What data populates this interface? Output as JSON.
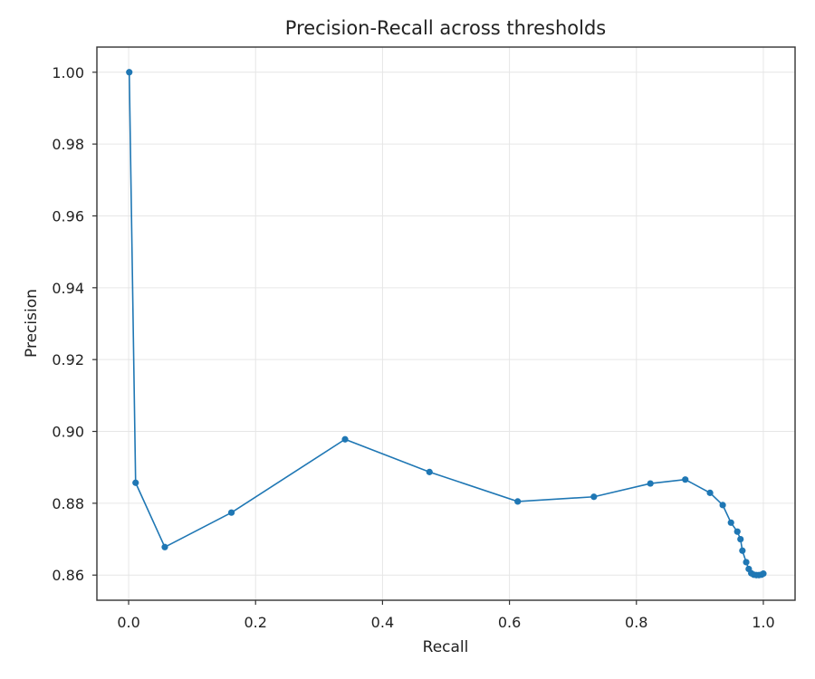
{
  "chart_data": {
    "type": "line",
    "title": "Precision-Recall across thresholds",
    "xlabel": "Recall",
    "ylabel": "Precision",
    "xlim": [
      -0.05,
      1.05
    ],
    "ylim": [
      0.853,
      1.007
    ],
    "xticks": [
      0.0,
      0.2,
      0.4,
      0.6,
      0.8,
      1.0
    ],
    "xtick_labels": [
      "0.0",
      "0.2",
      "0.4",
      "0.6",
      "0.8",
      "1.0"
    ],
    "yticks": [
      0.86,
      0.88,
      0.9,
      0.92,
      0.94,
      0.96,
      0.98,
      1.0
    ],
    "ytick_labels": [
      "0.86",
      "0.88",
      "0.90",
      "0.92",
      "0.94",
      "0.96",
      "0.98",
      "1.00"
    ],
    "grid": true,
    "series": [
      {
        "color": "#1f77b4",
        "marker": "circle",
        "x": [
          0.001,
          0.011,
          0.057,
          0.162,
          0.341,
          0.474,
          0.613,
          0.733,
          0.822,
          0.877,
          0.916,
          0.936,
          0.949,
          0.959,
          0.964,
          0.967,
          0.973,
          0.977,
          0.981,
          0.985,
          0.989,
          0.993,
          0.997,
          1.0
        ],
        "y": [
          1.0,
          0.8857,
          0.8678,
          0.8774,
          0.8978,
          0.8887,
          0.8805,
          0.8818,
          0.8855,
          0.8866,
          0.8829,
          0.8795,
          0.8746,
          0.8721,
          0.87,
          0.8668,
          0.8636,
          0.8617,
          0.8605,
          0.8601,
          0.86,
          0.86,
          0.8601,
          0.8604
        ]
      }
    ]
  }
}
